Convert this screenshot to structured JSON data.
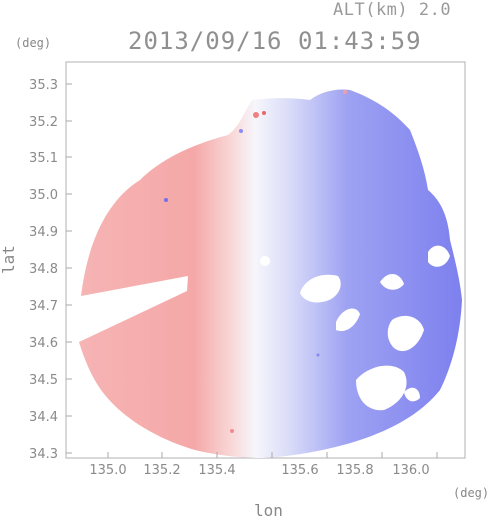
{
  "header": {
    "altitude": "ALT(km) 2.0",
    "timestamp": "2013/09/16 01:43:59"
  },
  "axes": {
    "y_unit": "(deg)",
    "x_unit": "(deg)",
    "y_label": "lat",
    "x_label": "lon",
    "x_ticks": [
      "135.0",
      "135.2",
      "135.4",
      "135.6",
      "135.8",
      "136.0"
    ],
    "y_ticks": [
      "35.3",
      "35.2",
      "35.1",
      "35.0",
      "34.9",
      "34.8",
      "34.7",
      "34.6",
      "34.5",
      "34.4",
      "34.3"
    ]
  },
  "colors": {
    "approaching": "#7b7bf0",
    "receding": "#f5a0a0",
    "neutral": "#f4f4fa"
  }
}
